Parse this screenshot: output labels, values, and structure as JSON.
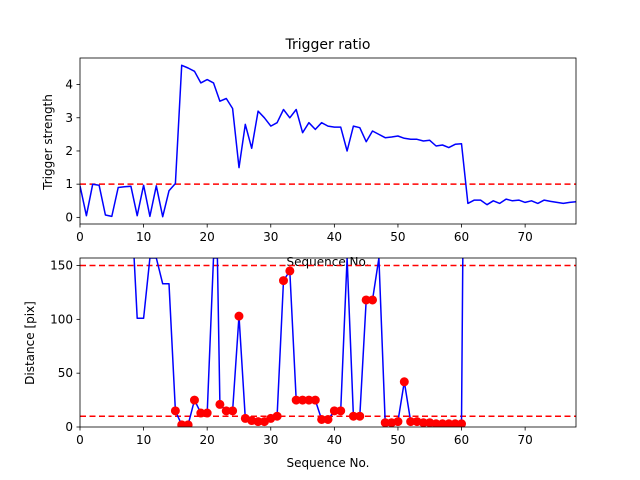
{
  "chart_data": [
    {
      "type": "line",
      "title": "Trigger ratio",
      "xlabel": "Sequence No.",
      "ylabel": "Trigger strength",
      "xlim": [
        0,
        78
      ],
      "ylim": [
        -0.2,
        4.8
      ],
      "xticks": [
        0,
        10,
        20,
        30,
        40,
        50,
        60,
        70
      ],
      "yticks": [
        0,
        1,
        2,
        3,
        4
      ],
      "series": [
        {
          "color": "#0000ff",
          "style": "solid",
          "x": [
            0,
            1,
            2,
            3,
            4,
            5,
            6,
            7,
            8,
            9,
            10,
            11,
            12,
            13,
            14,
            15,
            16,
            17,
            18,
            19,
            20,
            21,
            22,
            23,
            24,
            25,
            26,
            27,
            28,
            29,
            30,
            31,
            32,
            33,
            34,
            35,
            36,
            37,
            38,
            39,
            40,
            41,
            42,
            43,
            44,
            45,
            46,
            47,
            48,
            49,
            50,
            51,
            52,
            53,
            54,
            55,
            56,
            57,
            58,
            59,
            60,
            61,
            62,
            63,
            64,
            65,
            66,
            67,
            68,
            69,
            70,
            71,
            72,
            73,
            74,
            75,
            76,
            77,
            78
          ],
          "y": [
            0.95,
            0.05,
            1.0,
            0.97,
            0.07,
            0.03,
            0.9,
            0.92,
            0.94,
            0.05,
            0.97,
            0.03,
            0.95,
            0.02,
            0.8,
            1.02,
            4.58,
            4.5,
            4.4,
            4.05,
            4.15,
            4.05,
            3.5,
            3.58,
            3.28,
            1.5,
            2.8,
            2.08,
            3.2,
            3.0,
            2.75,
            2.85,
            3.25,
            3.0,
            3.25,
            2.55,
            2.85,
            2.65,
            2.85,
            2.75,
            2.72,
            2.72,
            2.0,
            2.75,
            2.7,
            2.28,
            2.6,
            2.5,
            2.4,
            2.42,
            2.45,
            2.38,
            2.35,
            2.35,
            2.3,
            2.32,
            2.15,
            2.18,
            2.1,
            2.2,
            2.22,
            0.42,
            0.52,
            0.52,
            0.38,
            0.5,
            0.42,
            0.55,
            0.5,
            0.52,
            0.45,
            0.5,
            0.42,
            0.52,
            0.48,
            0.45,
            0.42,
            0.45,
            0.47
          ]
        }
      ],
      "threshold": {
        "y": 1.0,
        "color": "#ff0000",
        "style": "dashed"
      }
    },
    {
      "type": "line",
      "title": "",
      "xlabel": "Sequence No.",
      "ylabel": "Distance [pix]",
      "xlim": [
        0,
        78
      ],
      "ylim": [
        0,
        157
      ],
      "xticks": [
        0,
        10,
        20,
        30,
        40,
        50,
        60,
        70
      ],
      "yticks": [
        0,
        50,
        100,
        150
      ],
      "series": [
        {
          "color": "#0000ff",
          "style": "solid",
          "x": [
            8.5,
            9,
            10,
            11,
            12,
            13,
            14,
            15,
            16,
            17,
            18,
            19,
            20,
            21,
            21.6,
            22,
            23,
            24,
            25,
            26,
            27,
            28,
            29,
            30,
            31,
            32,
            33,
            34,
            35,
            36,
            37,
            38,
            39,
            40,
            41,
            42,
            43,
            44,
            45,
            46,
            47,
            48,
            49,
            50,
            51,
            52,
            53,
            54,
            55,
            56,
            57,
            58,
            59,
            60,
            60.2
          ],
          "y": [
            157,
            101,
            101,
            157,
            157,
            133,
            133,
            15,
            2,
            2,
            25,
            13,
            13,
            157,
            157,
            21,
            15,
            15,
            103,
            8,
            6,
            5,
            5,
            8,
            10,
            136,
            145,
            25,
            25,
            25,
            25,
            7,
            7,
            15,
            15,
            157,
            10,
            10,
            118,
            118,
            157,
            4,
            4,
            5,
            42,
            5,
            5,
            4,
            4,
            3,
            3,
            3,
            3,
            3,
            157
          ]
        },
        {
          "color": "#ff0000",
          "style": "markers",
          "x": [
            15,
            16,
            17,
            18,
            19,
            20,
            22,
            23,
            24,
            25,
            26,
            27,
            28,
            29,
            30,
            31,
            32,
            33,
            34,
            35,
            36,
            37,
            38,
            39,
            40,
            41,
            43,
            44,
            45,
            46,
            48,
            49,
            50,
            51,
            52,
            53,
            54,
            55,
            56,
            57,
            58,
            59,
            60
          ],
          "y": [
            15,
            2,
            2,
            25,
            13,
            13,
            21,
            15,
            15,
            103,
            8,
            6,
            5,
            5,
            8,
            10,
            136,
            145,
            25,
            25,
            25,
            25,
            7,
            7,
            15,
            15,
            10,
            10,
            118,
            118,
            4,
            4,
            5,
            42,
            5,
            5,
            4,
            4,
            3,
            3,
            3,
            3,
            3
          ]
        }
      ],
      "thresholds": [
        {
          "y": 150,
          "color": "#ff0000",
          "style": "dashed"
        },
        {
          "y": 10,
          "color": "#ff0000",
          "style": "dashed"
        }
      ]
    }
  ]
}
